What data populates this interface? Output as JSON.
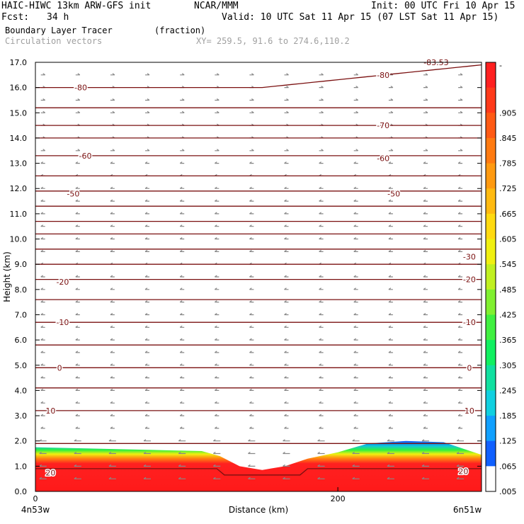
{
  "header": {
    "model": "HAIC-HIWC 13km ARW-GFS init",
    "org": "NCAR/MMM",
    "init": "Init: 00 UTC Fri 10 Apr 15",
    "fcst_label": "Fcst:",
    "fcst_value": "34 h",
    "valid": "Valid: 10 UTC Sat 11 Apr 15 (07 LST Sat 11 Apr 15)",
    "field": "Boundary Layer Tracer",
    "units": "(fraction)",
    "overlay": "Circulation vectors",
    "xy": "XY= 259.5, 91.6 to 274.6,110.2"
  },
  "colorbar": {
    "labels": [
      "-",
      ".905",
      ".845",
      ".785",
      ".725",
      ".665",
      ".605",
      ".545",
      ".485",
      ".425",
      ".365",
      ".305",
      ".245",
      ".185",
      ".125",
      ".065",
      ".005"
    ],
    "colors": [
      "#ff2020",
      "#ff3a1a",
      "#ff5a14",
      "#ff7a10",
      "#ff9a10",
      "#ffba10",
      "#ffda10",
      "#f0f010",
      "#c0f020",
      "#80f030",
      "#40f040",
      "#10f060",
      "#10e0a0",
      "#10d0e0",
      "#10a0ff",
      "#1060ff",
      "#ffffff"
    ]
  },
  "chart_data": {
    "type": "cross-section",
    "title": "Boundary Layer Tracer",
    "xlabel": "Distance (km)",
    "ylabel": "Height (km)",
    "xlim": [
      0,
      295
    ],
    "ylim": [
      0,
      17
    ],
    "x_ticks": [
      0,
      200
    ],
    "y_ticks": [
      "0.0",
      "1.0",
      "2.0",
      "3.0",
      "4.0",
      "5.0",
      "6.0",
      "7.0",
      "8.0",
      "9.0",
      "10.0",
      "11.0",
      "12.0",
      "13.0",
      "14.0",
      "15.0",
      "16.0",
      "17.0"
    ],
    "x_endpoints": [
      "4n53w",
      "6n51w"
    ],
    "contour_labels": [
      {
        "text": "-80",
        "x": 30,
        "y": 16.0
      },
      {
        "text": "-80",
        "x": 230,
        "y": 16.5
      },
      {
        "text": "-83.53",
        "x": 265,
        "y": 17.0
      },
      {
        "text": "-70",
        "x": 230,
        "y": 14.5
      },
      {
        "text": "-60",
        "x": 33,
        "y": 13.3
      },
      {
        "text": "-60",
        "x": 230,
        "y": 13.2
      },
      {
        "text": "-50",
        "x": 25,
        "y": 11.8
      },
      {
        "text": "-50",
        "x": 237,
        "y": 11.8
      },
      {
        "text": "-30",
        "x": 287,
        "y": 9.3
      },
      {
        "text": "-20",
        "x": 18,
        "y": 8.3
      },
      {
        "text": "-20",
        "x": 287,
        "y": 8.4
      },
      {
        "text": "-10",
        "x": 18,
        "y": 6.7
      },
      {
        "text": "-10",
        "x": 287,
        "y": 6.7
      },
      {
        "text": "0",
        "x": 16,
        "y": 4.9
      },
      {
        "text": "0",
        "x": 287,
        "y": 4.9
      },
      {
        "text": "10",
        "x": 10,
        "y": 3.2
      },
      {
        "text": "10",
        "x": 287,
        "y": 3.2
      },
      {
        "text": "20",
        "x": 10,
        "y": 0.75
      },
      {
        "text": "20",
        "x": 283,
        "y": 0.8
      }
    ],
    "contour_levels_y": [
      16.0,
      15.2,
      14.5,
      14.0,
      13.3,
      12.5,
      11.9,
      11.3,
      10.7,
      10.2,
      9.6,
      9.0,
      8.4,
      7.6,
      6.7,
      5.8,
      4.9,
      4.1,
      3.2,
      1.9,
      0.9
    ],
    "tracer_top_km": [
      {
        "x": 0,
        "top": 1.75
      },
      {
        "x": 110,
        "top": 1.6
      },
      {
        "x": 122,
        "top": 1.4
      },
      {
        "x": 135,
        "top": 1.0
      },
      {
        "x": 150,
        "top": 0.85
      },
      {
        "x": 165,
        "top": 1.0
      },
      {
        "x": 180,
        "top": 1.3
      },
      {
        "x": 200,
        "top": 1.55
      },
      {
        "x": 220,
        "top": 1.9
      },
      {
        "x": 245,
        "top": 2.0
      },
      {
        "x": 270,
        "top": 1.95
      },
      {
        "x": 295,
        "top": 1.45
      }
    ]
  }
}
